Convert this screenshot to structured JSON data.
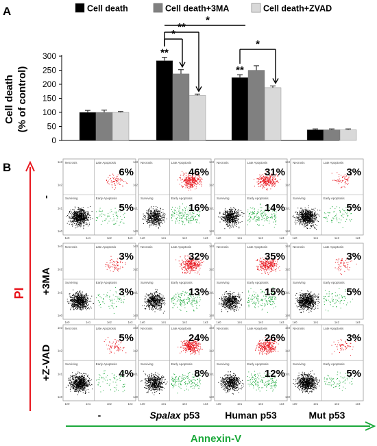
{
  "panel_labels": [
    "A",
    "B"
  ],
  "chart_data": [
    {
      "type": "bar",
      "ylabel": "Cell death\n(% of control)",
      "ylim": [
        0,
        300
      ],
      "yticks": [
        0,
        50,
        100,
        150,
        200,
        250,
        300
      ],
      "categories": [
        "-",
        "Spalax p53",
        "Human p53",
        "Mut p53"
      ],
      "legend_position": "top",
      "series": [
        {
          "name": "Cell death",
          "color": "#000000",
          "values": [
            100,
            284,
            224,
            38
          ],
          "errors": [
            7,
            12,
            10,
            3
          ]
        },
        {
          "name": "Cell death+3MA",
          "color": "#808080",
          "values": [
            100,
            237,
            250,
            38
          ],
          "errors": [
            8,
            15,
            16,
            3
          ]
        },
        {
          "name": "Cell death+ZVAD",
          "color": "#d9d9d9",
          "values": [
            100,
            160,
            188,
            38
          ],
          "errors": [
            3,
            5,
            6,
            3
          ]
        }
      ],
      "significance_stars": [
        {
          "group": 1,
          "series": 0,
          "label": "**"
        },
        {
          "group": 2,
          "series": 0,
          "label": "**"
        }
      ],
      "comparison_brackets": [
        {
          "label": "*",
          "from": [
            1,
            0
          ],
          "to": [
            1,
            1
          ]
        },
        {
          "label": "**",
          "from": [
            1,
            0
          ],
          "to": [
            1,
            2
          ]
        },
        {
          "label": "*",
          "from": [
            1,
            0
          ],
          "to": [
            2,
            0
          ]
        },
        {
          "label": "*",
          "from": [
            2,
            0
          ],
          "to": [
            2,
            2
          ]
        }
      ]
    },
    {
      "type": "scatter",
      "y_axis_label": "PI",
      "x_axis_label": "Annexin-V",
      "row_labels": [
        "-",
        "+3MA",
        "+Z-VAD"
      ],
      "column_labels": [
        "-",
        "Spalax p53",
        "Human p53",
        "Mut p53"
      ],
      "column_label_parts": [
        {
          "italic": "",
          "normal": "-"
        },
        {
          "italic": "Spalax",
          "normal": " p53"
        },
        {
          "italic": "",
          "normal": "Human p53"
        },
        {
          "italic": "",
          "normal": "Mut p53"
        }
      ],
      "quadrant_labels": [
        "Necrosis",
        "Late Apoptosis",
        "Surviving",
        "Early Apoptosis"
      ],
      "axis_ticks": [
        "1e0",
        "1e1",
        "1e2",
        "1e3"
      ],
      "quadrant_colors": {
        "late_apoptosis": "#e8141c",
        "early_apoptosis": "#1aa83a",
        "surviving": "#000000"
      },
      "late_apoptosis_percent": [
        [
          "6%",
          "46%",
          "31%",
          "3%"
        ],
        [
          "3%",
          "32%",
          "35%",
          "3%"
        ],
        [
          "5%",
          "24%",
          "26%",
          "3%"
        ]
      ],
      "early_apoptosis_percent": [
        [
          "5%",
          "16%",
          "14%",
          "5%"
        ],
        [
          "3%",
          "13%",
          "15%",
          "5%"
        ],
        [
          "4%",
          "8%",
          "12%",
          "5%"
        ]
      ]
    }
  ]
}
